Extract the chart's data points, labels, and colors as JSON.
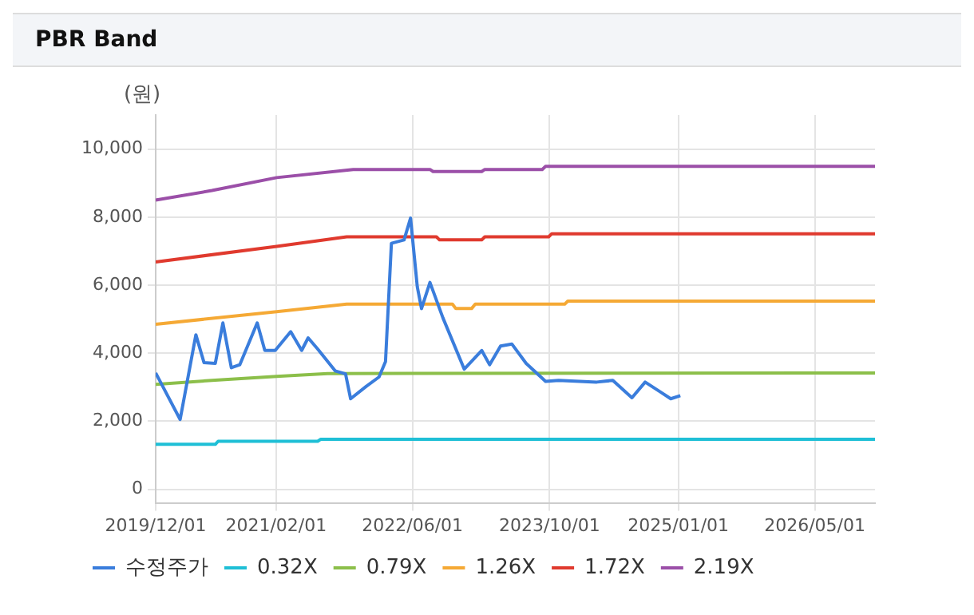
{
  "chart_data": {
    "type": "line",
    "title": "PBR Band",
    "ylabel": "(원)",
    "xlim": [
      "2019-12-01",
      "2026-12-01"
    ],
    "xticks": [
      {
        "value": "2019-12-01",
        "label": "2019/12/01"
      },
      {
        "value": "2021-02-01",
        "label": "2021/02/01"
      },
      {
        "value": "2022-06-01",
        "label": "2022/06/01"
      },
      {
        "value": "2023-10-01",
        "label": "2023/10/01"
      },
      {
        "value": "2025-01-01",
        "label": "2025/01/01"
      },
      {
        "value": "2026-05-01",
        "label": "2026/05/01"
      }
    ],
    "ylim": [
      -400,
      11000
    ],
    "yticks": [
      {
        "value": 0,
        "label": "0"
      },
      {
        "value": 2000,
        "label": "2,000"
      },
      {
        "value": 4000,
        "label": "4,000"
      },
      {
        "value": 6000,
        "label": "6,000"
      },
      {
        "value": 8000,
        "label": "8,000"
      },
      {
        "value": 10000,
        "label": "10,000"
      }
    ],
    "grid": true,
    "legend": "bottom",
    "marker": "none",
    "line_style": "solid",
    "series": [
      {
        "name": "수정주가",
        "color": "#3a7ddc",
        "x": [
          "2019-12-01",
          "2020-02-26",
          "2020-04-22",
          "2020-05-21",
          "2020-06-30",
          "2020-07-27",
          "2020-08-26",
          "2020-09-25",
          "2020-11-26",
          "2020-12-23",
          "2021-01-29",
          "2021-03-25",
          "2021-05-03",
          "2021-05-26",
          "2021-06-29",
          "2021-08-30",
          "2021-10-06",
          "2021-10-24",
          "2021-12-18",
          "2022-02-02",
          "2022-02-25",
          "2022-03-18",
          "2022-05-02",
          "2022-05-25",
          "2022-06-18",
          "2022-07-03",
          "2022-08-02",
          "2022-09-17",
          "2022-12-02",
          "2023-02-02",
          "2023-03-02",
          "2023-04-10",
          "2023-05-20",
          "2023-07-10",
          "2023-09-17",
          "2023-11-02",
          "2024-03-17",
          "2024-05-13",
          "2024-07-20",
          "2024-09-05",
          "2024-11-02",
          "2024-12-05",
          "2025-01-08"
        ],
        "values": [
          3420,
          2050,
          4540,
          3720,
          3700,
          4890,
          3570,
          3660,
          4890,
          4080,
          4080,
          4630,
          4080,
          4450,
          4120,
          3480,
          3390,
          2660,
          3020,
          3300,
          3750,
          7230,
          7330,
          7970,
          5950,
          5310,
          6080,
          5040,
          3530,
          4080,
          3660,
          4210,
          4270,
          3700,
          3170,
          3200,
          3150,
          3200,
          2690,
          3150,
          2840,
          2660,
          2750
        ]
      },
      {
        "name": "0.32X",
        "color": "#1fbfd6",
        "x": [
          "2019-12-01",
          "2020-06-30",
          "2020-07-10",
          "2021-06-29",
          "2021-07-10",
          "2026-12-01"
        ],
        "values": [
          1320,
          1320,
          1410,
          1410,
          1470,
          1470
        ]
      },
      {
        "name": "0.79X",
        "color": "#8cbf4a",
        "x": [
          "2019-12-01",
          "2020-06-18",
          "2021-02-03",
          "2021-08-03",
          "2026-12-01"
        ],
        "values": [
          3080,
          3200,
          3320,
          3400,
          3420
        ]
      },
      {
        "name": "1.26X",
        "color": "#f5a935",
        "x": [
          "2019-12-01",
          "2021-02-03",
          "2021-10-10",
          "2022-10-21",
          "2022-11-02",
          "2022-12-28",
          "2023-01-10",
          "2023-11-24",
          "2023-12-05",
          "2026-12-01"
        ],
        "values": [
          4850,
          5220,
          5440,
          5440,
          5310,
          5310,
          5440,
          5440,
          5530,
          5530
        ]
      },
      {
        "name": "1.72X",
        "color": "#e03a2e",
        "x": [
          "2019-12-01",
          "2021-02-03",
          "2021-10-10",
          "2022-08-25",
          "2022-09-05",
          "2023-02-02",
          "2023-02-13",
          "2023-09-28",
          "2023-10-09",
          "2026-12-01"
        ],
        "values": [
          6680,
          7140,
          7420,
          7420,
          7330,
          7330,
          7420,
          7420,
          7510,
          7510
        ]
      },
      {
        "name": "2.19X",
        "color": "#9b4fa8",
        "x": [
          "2019-12-01",
          "2020-06-18",
          "2021-02-03",
          "2021-11-02",
          "2022-08-02",
          "2022-08-13",
          "2023-02-02",
          "2023-02-13",
          "2023-09-05",
          "2023-09-17",
          "2026-12-01"
        ],
        "values": [
          8500,
          8780,
          9160,
          9400,
          9400,
          9340,
          9340,
          9400,
          9400,
          9490,
          9490
        ]
      }
    ]
  }
}
